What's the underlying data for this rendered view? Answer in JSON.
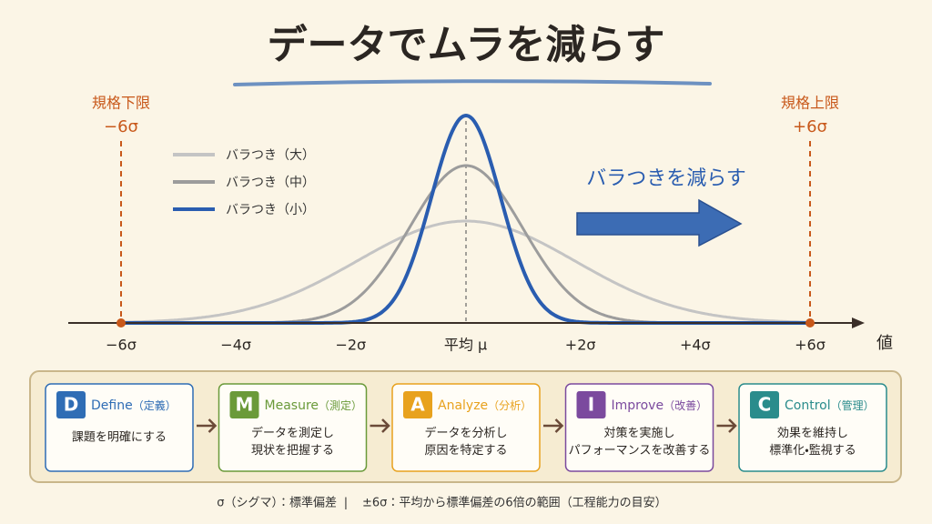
{
  "title": "データでムラを減らす",
  "spec_lower": {
    "label": "規格下限",
    "value": "−6σ"
  },
  "spec_upper": {
    "label": "規格上限",
    "value": "+6σ"
  },
  "legend": [
    "バラつき（大）",
    "バラつき（中）",
    "バラつき（小）"
  ],
  "arrow_label": "バラつきを減らす",
  "axis": {
    "ticks": [
      "−6σ",
      "−4σ",
      "−2σ",
      "平均 μ",
      "+2σ",
      "+4σ",
      "+6σ"
    ],
    "label": "値"
  },
  "dmaic": [
    {
      "letter": "D",
      "name": "Define",
      "jp": "（定義）",
      "desc": [
        "課題を明確にする"
      ]
    },
    {
      "letter": "M",
      "name": "Measure",
      "jp": "（測定）",
      "desc": [
        "データを測定し",
        "現状を把握する"
      ]
    },
    {
      "letter": "A",
      "name": "Analyze",
      "jp": "（分析）",
      "desc": [
        "データを分析し",
        "原因を特定する"
      ]
    },
    {
      "letter": "I",
      "name": "Improve",
      "jp": "（改善）",
      "desc": [
        "対策を実施し",
        "パフォーマンスを改善する"
      ]
    },
    {
      "letter": "C",
      "name": "Control",
      "jp": "（管理）",
      "desc": [
        "効果を維持し",
        "標準化・監視する"
      ]
    }
  ],
  "footnote": {
    "left": "σ（シグマ）：標準偏差",
    "separator": "|",
    "right": "±6σ：平均から標準偏差の6倍の範囲（工程能力の目安）"
  }
}
